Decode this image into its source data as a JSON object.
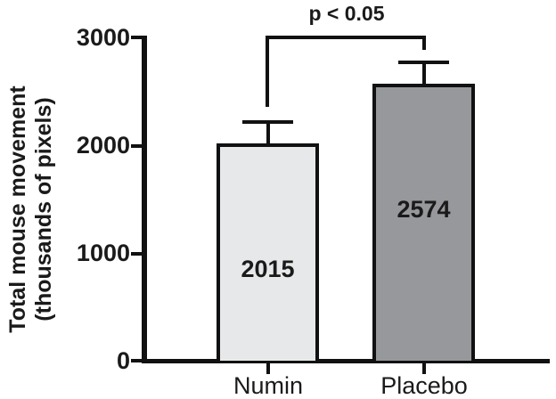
{
  "chart_data": {
    "type": "bar",
    "title": "",
    "xlabel": "",
    "ylabel": "Total mouse movement (thousands of pixels)",
    "ylabel_lines": [
      "Total mouse movement",
      "(thousands of pixels)"
    ],
    "categories": [
      "Numin",
      "Placebo"
    ],
    "values": [
      2015,
      2574
    ],
    "errors": [
      200,
      195
    ],
    "error_style": "upper whisker with cap",
    "bar_colors": [
      "#e7e8e9",
      "#97989b"
    ],
    "bar_border_color": "#111111",
    "axis_color": "#111111",
    "ylim": [
      0,
      3000
    ],
    "yticks": [
      0,
      1000,
      2000,
      3000
    ],
    "grid": false,
    "legend": "none",
    "annotations": [
      {
        "text": "p < 0.05",
        "between": [
          "Numin",
          "Placebo"
        ]
      }
    ]
  }
}
